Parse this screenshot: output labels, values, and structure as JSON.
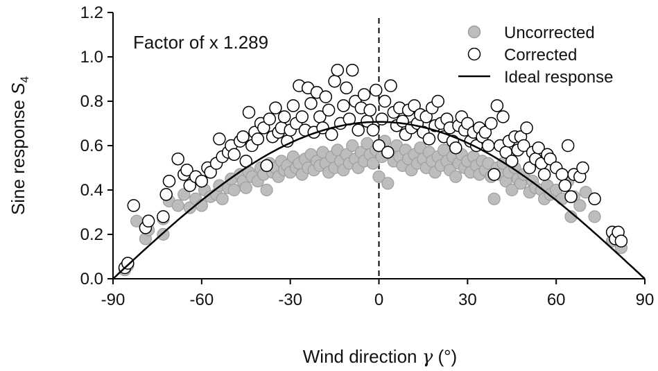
{
  "chart_data": {
    "type": "scatter",
    "annotation": "Factor of x 1.289",
    "xlabel": "Wind direction γ (°)",
    "xlabel_parts": {
      "main": "Wind direction ",
      "symbol": "γ",
      "unit": " (°)"
    },
    "ylabel": "Sine response S4",
    "ylabel_parts": {
      "main": "Sine response ",
      "symbol": "S",
      "subscript": "4"
    },
    "xlim": [
      -90,
      90
    ],
    "ylim": [
      0,
      1.2
    ],
    "xticks": [
      -90,
      -60,
      -30,
      0,
      30,
      60,
      90
    ],
    "xtick_labels": [
      "-90",
      "-60",
      "-30",
      "0",
      "30",
      "60",
      "90"
    ],
    "yticks": [
      0,
      0.2,
      0.4,
      0.6,
      0.8,
      1.0,
      1.2
    ],
    "ytick_labels": [
      "0.0",
      "0.2",
      "0.4",
      "0.6",
      "0.8",
      "1.0",
      "1.2"
    ],
    "grid": false,
    "legend_position": "top-right",
    "reference_line": {
      "x": 0,
      "style": "dashed"
    },
    "colors": {
      "uncorrected_fill": "#bdbdbd",
      "uncorrected_edge": "#9e9e9e",
      "corrected_fill": "#ffffff",
      "corrected_edge": "#000000",
      "ideal_line": "#000000"
    },
    "series": [
      {
        "name": "Uncorrected",
        "marker": "filled-gray-circle",
        "points": [
          [
            -86,
            0.04
          ],
          [
            -85,
            0.06
          ],
          [
            -82,
            0.26
          ],
          [
            -79,
            0.18
          ],
          [
            -78,
            0.22
          ],
          [
            -73,
            0.2
          ],
          [
            -73,
            0.27
          ],
          [
            -71,
            0.35
          ],
          [
            -68,
            0.33
          ],
          [
            -66,
            0.38
          ],
          [
            -64,
            0.32
          ],
          [
            -62,
            0.36
          ],
          [
            -60,
            0.33
          ],
          [
            -59,
            0.4
          ],
          [
            -57,
            0.37
          ],
          [
            -55,
            0.38
          ],
          [
            -54,
            0.42
          ],
          [
            -53,
            0.36
          ],
          [
            -51,
            0.41
          ],
          [
            -50,
            0.45
          ],
          [
            -49,
            0.4
          ],
          [
            -47,
            0.47
          ],
          [
            -46,
            0.44
          ],
          [
            -45,
            0.41
          ],
          [
            -44,
            0.48
          ],
          [
            -43,
            0.46
          ],
          [
            -41,
            0.44
          ],
          [
            -40,
            0.5
          ],
          [
            -39,
            0.47
          ],
          [
            -38,
            0.4
          ],
          [
            -37,
            0.52
          ],
          [
            -36,
            0.48
          ],
          [
            -35,
            0.5
          ],
          [
            -34,
            0.46
          ],
          [
            -33,
            0.53
          ],
          [
            -32,
            0.49
          ],
          [
            -31,
            0.51
          ],
          [
            -30,
            0.48
          ],
          [
            -29,
            0.55
          ],
          [
            -28,
            0.5
          ],
          [
            -27,
            0.52
          ],
          [
            -26,
            0.47
          ],
          [
            -25,
            0.54
          ],
          [
            -24,
            0.5
          ],
          [
            -23,
            0.56
          ],
          [
            -22,
            0.49
          ],
          [
            -21,
            0.53
          ],
          [
            -20,
            0.51
          ],
          [
            -19,
            0.57
          ],
          [
            -18,
            0.52
          ],
          [
            -17,
            0.48
          ],
          [
            -16,
            0.55
          ],
          [
            -15,
            0.5
          ],
          [
            -14,
            0.58
          ],
          [
            -13,
            0.53
          ],
          [
            -12,
            0.49
          ],
          [
            -11,
            0.56
          ],
          [
            -10,
            0.52
          ],
          [
            -9,
            0.6
          ],
          [
            -8,
            0.54
          ],
          [
            -7,
            0.5
          ],
          [
            -6,
            0.57
          ],
          [
            -5,
            0.53
          ],
          [
            -4,
            0.61
          ],
          [
            -3,
            0.56
          ],
          [
            -2,
            0.52
          ],
          [
            -1,
            0.58
          ],
          [
            0,
            0.46
          ],
          [
            1,
            0.55
          ],
          [
            2,
            0.62
          ],
          [
            3,
            0.43
          ],
          [
            4,
            0.57
          ],
          [
            5,
            0.53
          ],
          [
            6,
            0.6
          ],
          [
            7,
            0.55
          ],
          [
            8,
            0.51
          ],
          [
            9,
            0.58
          ],
          [
            10,
            0.54
          ],
          [
            11,
            0.49
          ],
          [
            12,
            0.56
          ],
          [
            13,
            0.52
          ],
          [
            14,
            0.59
          ],
          [
            15,
            0.54
          ],
          [
            16,
            0.5
          ],
          [
            17,
            0.57
          ],
          [
            18,
            0.53
          ],
          [
            19,
            0.48
          ],
          [
            20,
            0.55
          ],
          [
            21,
            0.51
          ],
          [
            22,
            0.58
          ],
          [
            23,
            0.53
          ],
          [
            24,
            0.49
          ],
          [
            25,
            0.55
          ],
          [
            26,
            0.46
          ],
          [
            27,
            0.52
          ],
          [
            28,
            0.56
          ],
          [
            29,
            0.5
          ],
          [
            30,
            0.53
          ],
          [
            31,
            0.48
          ],
          [
            32,
            0.55
          ],
          [
            33,
            0.51
          ],
          [
            34,
            0.47
          ],
          [
            35,
            0.53
          ],
          [
            36,
            0.49
          ],
          [
            37,
            0.52
          ],
          [
            38,
            0.46
          ],
          [
            39,
            0.36
          ],
          [
            40,
            0.5
          ],
          [
            41,
            0.47
          ],
          [
            42,
            0.52
          ],
          [
            43,
            0.44
          ],
          [
            44,
            0.48
          ],
          [
            45,
            0.4
          ],
          [
            46,
            0.5
          ],
          [
            47,
            0.45
          ],
          [
            48,
            0.43
          ],
          [
            49,
            0.47
          ],
          [
            51,
            0.39
          ],
          [
            52,
            0.44
          ],
          [
            53,
            0.41
          ],
          [
            55,
            0.4
          ],
          [
            56,
            0.36
          ],
          [
            57,
            0.42
          ],
          [
            58,
            0.38
          ],
          [
            60,
            0.4
          ],
          [
            62,
            0.36
          ],
          [
            64,
            0.44
          ],
          [
            65,
            0.28
          ],
          [
            66,
            0.37
          ],
          [
            68,
            0.33
          ],
          [
            70,
            0.39
          ],
          [
            73,
            0.28
          ],
          [
            79,
            0.17
          ],
          [
            80,
            0.19
          ],
          [
            82,
            0.14
          ]
        ]
      },
      {
        "name": "Corrected",
        "marker": "open-circle",
        "points": [
          [
            -86,
            0.05
          ],
          [
            -85,
            0.07
          ],
          [
            -83,
            0.33
          ],
          [
            -79,
            0.23
          ],
          [
            -78,
            0.26
          ],
          [
            -73,
            0.28
          ],
          [
            -72,
            0.38
          ],
          [
            -71,
            0.44
          ],
          [
            -68,
            0.54
          ],
          [
            -66,
            0.47
          ],
          [
            -65,
            0.49
          ],
          [
            -64,
            0.42
          ],
          [
            -62,
            0.46
          ],
          [
            -60,
            0.44
          ],
          [
            -58,
            0.5
          ],
          [
            -57,
            0.48
          ],
          [
            -55,
            0.52
          ],
          [
            -54,
            0.63
          ],
          [
            -53,
            0.55
          ],
          [
            -51,
            0.57
          ],
          [
            -50,
            0.6
          ],
          [
            -49,
            0.56
          ],
          [
            -47,
            0.62
          ],
          [
            -46,
            0.64
          ],
          [
            -45,
            0.53
          ],
          [
            -44,
            0.75
          ],
          [
            -43,
            0.6
          ],
          [
            -42,
            0.66
          ],
          [
            -41,
            0.63
          ],
          [
            -40,
            0.7
          ],
          [
            -39,
            0.68
          ],
          [
            -38,
            0.51
          ],
          [
            -37,
            0.72
          ],
          [
            -36,
            0.64
          ],
          [
            -35,
            0.77
          ],
          [
            -34,
            0.66
          ],
          [
            -33,
            0.68
          ],
          [
            -32,
            0.73
          ],
          [
            -31,
            0.62
          ],
          [
            -30,
            0.67
          ],
          [
            -29,
            0.78
          ],
          [
            -28,
            0.7
          ],
          [
            -27,
            0.87
          ],
          [
            -26,
            0.73
          ],
          [
            -25,
            0.67
          ],
          [
            -24,
            0.86
          ],
          [
            -23,
            0.79
          ],
          [
            -22,
            0.66
          ],
          [
            -21,
            0.84
          ],
          [
            -20,
            0.73
          ],
          [
            -19,
            0.68
          ],
          [
            -18,
            0.82
          ],
          [
            -17,
            0.76
          ],
          [
            -16,
            0.65
          ],
          [
            -15,
            0.89
          ],
          [
            -14,
            0.94
          ],
          [
            -13,
            0.7
          ],
          [
            -12,
            0.78
          ],
          [
            -11,
            0.86
          ],
          [
            -10,
            0.72
          ],
          [
            -9,
            0.94
          ],
          [
            -8,
            0.8
          ],
          [
            -7,
            0.67
          ],
          [
            -6,
            0.77
          ],
          [
            -5,
            0.83
          ],
          [
            -4,
            0.71
          ],
          [
            -3,
            0.76
          ],
          [
            -2,
            0.67
          ],
          [
            -1,
            0.85
          ],
          [
            0,
            0.6
          ],
          [
            1,
            0.72
          ],
          [
            2,
            0.8
          ],
          [
            3,
            0.57
          ],
          [
            4,
            0.87
          ],
          [
            5,
            0.75
          ],
          [
            6,
            0.69
          ],
          [
            7,
            0.77
          ],
          [
            8,
            0.71
          ],
          [
            9,
            0.65
          ],
          [
            10,
            0.76
          ],
          [
            11,
            0.68
          ],
          [
            12,
            0.78
          ],
          [
            13,
            0.7
          ],
          [
            14,
            0.74
          ],
          [
            15,
            0.66
          ],
          [
            16,
            0.73
          ],
          [
            17,
            0.63
          ],
          [
            18,
            0.77
          ],
          [
            19,
            0.69
          ],
          [
            20,
            0.8
          ],
          [
            21,
            0.7
          ],
          [
            22,
            0.64
          ],
          [
            23,
            0.72
          ],
          [
            24,
            0.68
          ],
          [
            25,
            0.62
          ],
          [
            26,
            0.59
          ],
          [
            27,
            0.69
          ],
          [
            28,
            0.73
          ],
          [
            29,
            0.67
          ],
          [
            30,
            0.7
          ],
          [
            31,
            0.62
          ],
          [
            32,
            0.66
          ],
          [
            33,
            0.6
          ],
          [
            34,
            0.68
          ],
          [
            35,
            0.64
          ],
          [
            36,
            0.66
          ],
          [
            37,
            0.6
          ],
          [
            38,
            0.7
          ],
          [
            39,
            0.47
          ],
          [
            40,
            0.78
          ],
          [
            41,
            0.6
          ],
          [
            42,
            0.73
          ],
          [
            43,
            0.57
          ],
          [
            44,
            0.62
          ],
          [
            45,
            0.53
          ],
          [
            46,
            0.64
          ],
          [
            47,
            0.58
          ],
          [
            48,
            0.64
          ],
          [
            49,
            0.6
          ],
          [
            50,
            0.68
          ],
          [
            51,
            0.5
          ],
          [
            52,
            0.57
          ],
          [
            53,
            0.54
          ],
          [
            54,
            0.59
          ],
          [
            55,
            0.52
          ],
          [
            56,
            0.47
          ],
          [
            57,
            0.56
          ],
          [
            58,
            0.54
          ],
          [
            60,
            0.5
          ],
          [
            62,
            0.47
          ],
          [
            63,
            0.42
          ],
          [
            64,
            0.6
          ],
          [
            65,
            0.37
          ],
          [
            66,
            0.47
          ],
          [
            68,
            0.46
          ],
          [
            69,
            0.5
          ],
          [
            73,
            0.36
          ],
          [
            79,
            0.21
          ],
          [
            80,
            0.18
          ],
          [
            81,
            0.21
          ],
          [
            82,
            0.17
          ]
        ]
      },
      {
        "name": "Ideal response",
        "marker": "solid-line",
        "function": "0.707 * cos(γ)"
      }
    ]
  }
}
